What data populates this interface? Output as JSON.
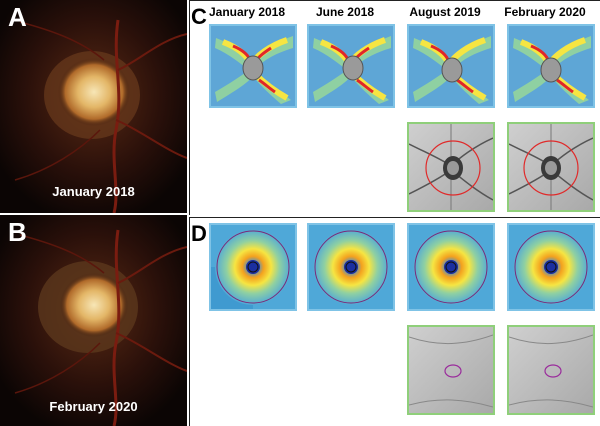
{
  "panels": {
    "a": {
      "letter": "A",
      "caption": "January 2018"
    },
    "b": {
      "letter": "B",
      "caption": "February 2020"
    },
    "c": {
      "letter": "C"
    },
    "d": {
      "letter": "D"
    }
  },
  "columns": [
    "January 2018",
    "June 2018",
    "August 2019",
    "February 2020"
  ],
  "colors": {
    "fundus_background": "#0b0504",
    "disc_center": "#f3d9a0",
    "rnfl_map_base": "#5ea6d6",
    "heat_red": "#e0262a",
    "heat_yellow": "#f7e84a",
    "blue_frame": "#7fc3e6",
    "green_frame": "#8fcf7a",
    "circle_red": "#e02a2a",
    "circle_purple": "#9a2c9c"
  },
  "icons": [
    "optic-disc-photo",
    "rnfl-thickness-map",
    "macular-thickness-map",
    "infrared-fundus"
  ]
}
